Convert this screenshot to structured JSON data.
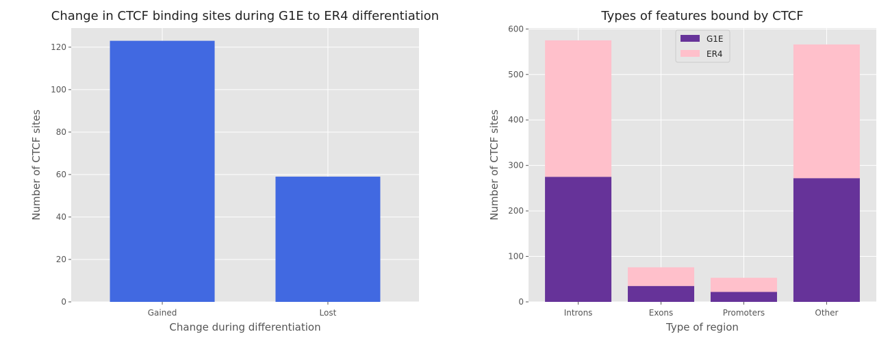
{
  "chart_data": [
    {
      "type": "bar",
      "title": "Change in CTCF binding sites during G1E to ER4 differentiation",
      "xlabel": "Change during differentiation",
      "ylabel": "Number of CTCF sites",
      "categories": [
        "Gained",
        "Lost"
      ],
      "values": [
        123,
        59
      ],
      "ylim": [
        0,
        129
      ],
      "yticks": [
        0,
        20,
        40,
        60,
        80,
        100,
        120
      ],
      "grid": true,
      "colors": {
        "bar": "#4169e1",
        "background": "#e5e5e5",
        "grid": "#ffffff"
      }
    },
    {
      "type": "bar",
      "stacked": true,
      "title": "Types of features bound by CTCF",
      "xlabel": "Type of region",
      "ylabel": "Number of CTCF sites",
      "categories": [
        "Introns",
        "Exons",
        "Promoters",
        "Other"
      ],
      "series": [
        {
          "name": "G1E",
          "values": [
            275,
            35,
            22,
            272
          ],
          "color": "#663399"
        },
        {
          "name": "ER4",
          "values": [
            300,
            41,
            31,
            294
          ],
          "color": "#ffc0cb"
        }
      ],
      "ylim": [
        0,
        602
      ],
      "yticks": [
        0,
        100,
        200,
        300,
        400,
        500,
        600
      ],
      "grid": true,
      "legend": "top-center",
      "colors": {
        "background": "#e5e5e5",
        "grid": "#ffffff"
      }
    }
  ]
}
